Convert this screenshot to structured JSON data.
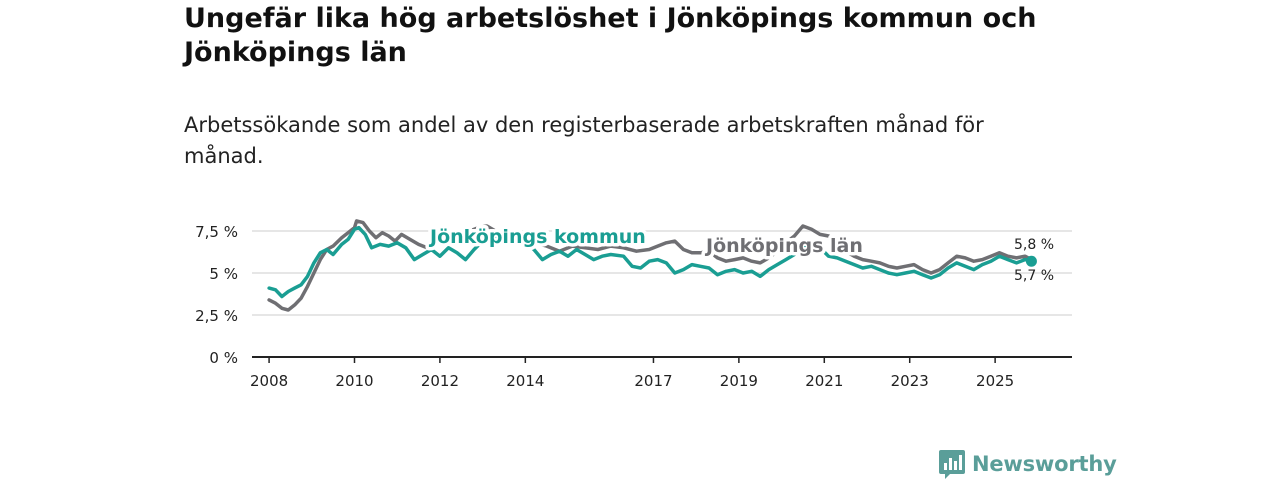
{
  "title": "Ungefär lika hög arbetslöshet i Jönköpings kommun och Jönköpings län",
  "subtitle": "Arbetssökande som andel av den registerbaserade arbetskraften månad för månad.",
  "brand": "Newsworthy",
  "colors": {
    "kommun": "#1a9e93",
    "lan": "#6f6f73",
    "grid": "#dddddd",
    "axis": "#222222",
    "brand": "#5a9e99"
  },
  "chart_data": {
    "type": "line",
    "title": "Ungefär lika hög arbetslöshet i Jönköpings kommun och Jönköpings län",
    "xlabel": "",
    "ylabel": "",
    "xlim": [
      2007.6,
      2026.8
    ],
    "ylim": [
      0,
      7.5
    ],
    "y_ticks": [
      0,
      2.5,
      5,
      7.5
    ],
    "y_tick_labels": [
      "0 %",
      "2,5 %",
      "5 %",
      "7,5 %"
    ],
    "x_ticks": [
      2008,
      2010,
      2012,
      2014,
      2017,
      2019,
      2021,
      2023,
      2025
    ],
    "x_tick_labels": [
      "2008",
      "2010",
      "2012",
      "2014",
      "2017",
      "2019",
      "2021",
      "2023",
      "2025"
    ],
    "grid": true,
    "series": [
      {
        "name": "Jönköpings län",
        "color": "#6f6f73",
        "end_label": "5,8 %",
        "points": [
          [
            2008.0,
            3.4
          ],
          [
            2008.15,
            3.2
          ],
          [
            2008.3,
            2.9
          ],
          [
            2008.45,
            2.8
          ],
          [
            2008.6,
            3.1
          ],
          [
            2008.75,
            3.5
          ],
          [
            2008.9,
            4.2
          ],
          [
            2009.05,
            5.0
          ],
          [
            2009.2,
            5.8
          ],
          [
            2009.35,
            6.4
          ],
          [
            2009.5,
            6.6
          ],
          [
            2009.7,
            7.1
          ],
          [
            2009.85,
            7.4
          ],
          [
            2010.0,
            7.7
          ],
          [
            2010.05,
            8.1
          ],
          [
            2010.2,
            8.0
          ],
          [
            2010.35,
            7.5
          ],
          [
            2010.5,
            7.1
          ],
          [
            2010.65,
            7.4
          ],
          [
            2010.8,
            7.2
          ],
          [
            2010.95,
            6.9
          ],
          [
            2011.1,
            7.3
          ],
          [
            2011.3,
            7.0
          ],
          [
            2011.5,
            6.7
          ],
          [
            2011.7,
            6.5
          ],
          [
            2011.9,
            6.9
          ],
          [
            2012.1,
            6.7
          ],
          [
            2012.3,
            7.1
          ],
          [
            2012.5,
            7.3
          ],
          [
            2012.7,
            7.5
          ],
          [
            2012.9,
            7.7
          ],
          [
            2013.1,
            7.8
          ],
          [
            2013.3,
            7.5
          ],
          [
            2013.6,
            7.3
          ],
          [
            2013.9,
            7.0
          ],
          [
            2014.2,
            6.8
          ],
          [
            2014.5,
            6.6
          ],
          [
            2014.8,
            6.3
          ],
          [
            2015.1,
            6.6
          ],
          [
            2015.4,
            6.5
          ],
          [
            2015.7,
            6.4
          ],
          [
            2016.0,
            6.6
          ],
          [
            2016.3,
            6.5
          ],
          [
            2016.6,
            6.3
          ],
          [
            2016.9,
            6.4
          ],
          [
            2017.1,
            6.6
          ],
          [
            2017.3,
            6.8
          ],
          [
            2017.5,
            6.9
          ],
          [
            2017.7,
            6.4
          ],
          [
            2017.9,
            6.2
          ],
          [
            2018.1,
            6.2
          ],
          [
            2018.3,
            6.3
          ],
          [
            2018.5,
            5.9
          ],
          [
            2018.7,
            5.7
          ],
          [
            2018.9,
            5.8
          ],
          [
            2019.1,
            5.9
          ],
          [
            2019.3,
            5.7
          ],
          [
            2019.5,
            5.6
          ],
          [
            2019.7,
            5.9
          ],
          [
            2019.9,
            6.3
          ],
          [
            2020.1,
            6.8
          ],
          [
            2020.3,
            7.2
          ],
          [
            2020.5,
            7.8
          ],
          [
            2020.7,
            7.6
          ],
          [
            2020.9,
            7.3
          ],
          [
            2021.1,
            7.2
          ],
          [
            2021.3,
            6.8
          ],
          [
            2021.5,
            6.3
          ],
          [
            2021.7,
            6.0
          ],
          [
            2021.9,
            5.8
          ],
          [
            2022.1,
            5.7
          ],
          [
            2022.3,
            5.6
          ],
          [
            2022.5,
            5.4
          ],
          [
            2022.7,
            5.3
          ],
          [
            2022.9,
            5.4
          ],
          [
            2023.1,
            5.5
          ],
          [
            2023.3,
            5.2
          ],
          [
            2023.5,
            5.0
          ],
          [
            2023.7,
            5.2
          ],
          [
            2023.9,
            5.6
          ],
          [
            2024.1,
            6.0
          ],
          [
            2024.3,
            5.9
          ],
          [
            2024.5,
            5.7
          ],
          [
            2024.7,
            5.8
          ],
          [
            2024.9,
            6.0
          ],
          [
            2025.1,
            6.2
          ],
          [
            2025.3,
            6.0
          ],
          [
            2025.5,
            5.9
          ],
          [
            2025.7,
            6.0
          ],
          [
            2025.85,
            5.8
          ]
        ]
      },
      {
        "name": "Jönköpings kommun",
        "color": "#1a9e93",
        "end_label": "5,7 %",
        "points": [
          [
            2008.0,
            4.1
          ],
          [
            2008.15,
            4.0
          ],
          [
            2008.3,
            3.6
          ],
          [
            2008.45,
            3.9
          ],
          [
            2008.6,
            4.1
          ],
          [
            2008.75,
            4.3
          ],
          [
            2008.9,
            4.8
          ],
          [
            2009.05,
            5.6
          ],
          [
            2009.2,
            6.2
          ],
          [
            2009.35,
            6.4
          ],
          [
            2009.5,
            6.1
          ],
          [
            2009.7,
            6.7
          ],
          [
            2009.85,
            7.0
          ],
          [
            2010.0,
            7.6
          ],
          [
            2010.1,
            7.7
          ],
          [
            2010.25,
            7.3
          ],
          [
            2010.4,
            6.5
          ],
          [
            2010.6,
            6.7
          ],
          [
            2010.8,
            6.6
          ],
          [
            2011.0,
            6.8
          ],
          [
            2011.2,
            6.5
          ],
          [
            2011.4,
            5.8
          ],
          [
            2011.6,
            6.1
          ],
          [
            2011.8,
            6.4
          ],
          [
            2012.0,
            6.0
          ],
          [
            2012.2,
            6.5
          ],
          [
            2012.4,
            6.2
          ],
          [
            2012.6,
            5.8
          ],
          [
            2012.8,
            6.4
          ],
          [
            2013.0,
            6.9
          ],
          [
            2013.3,
            7.2
          ],
          [
            2013.6,
            7.3
          ],
          [
            2013.9,
            7.0
          ],
          [
            2014.2,
            6.4
          ],
          [
            2014.4,
            5.8
          ],
          [
            2014.6,
            6.1
          ],
          [
            2014.8,
            6.3
          ],
          [
            2015.0,
            6.0
          ],
          [
            2015.2,
            6.4
          ],
          [
            2015.4,
            6.1
          ],
          [
            2015.6,
            5.8
          ],
          [
            2015.8,
            6.0
          ],
          [
            2016.0,
            6.1
          ],
          [
            2016.3,
            6.0
          ],
          [
            2016.5,
            5.4
          ],
          [
            2016.7,
            5.3
          ],
          [
            2016.9,
            5.7
          ],
          [
            2017.1,
            5.8
          ],
          [
            2017.3,
            5.6
          ],
          [
            2017.5,
            5.0
          ],
          [
            2017.7,
            5.2
          ],
          [
            2017.9,
            5.5
          ],
          [
            2018.1,
            5.4
          ],
          [
            2018.3,
            5.3
          ],
          [
            2018.5,
            4.9
          ],
          [
            2018.7,
            5.1
          ],
          [
            2018.9,
            5.2
          ],
          [
            2019.1,
            5.0
          ],
          [
            2019.3,
            5.1
          ],
          [
            2019.5,
            4.8
          ],
          [
            2019.7,
            5.2
          ],
          [
            2019.9,
            5.5
          ],
          [
            2020.1,
            5.8
          ],
          [
            2020.3,
            6.1
          ],
          [
            2020.5,
            6.6
          ],
          [
            2020.7,
            6.7
          ],
          [
            2020.9,
            6.5
          ],
          [
            2021.1,
            6.0
          ],
          [
            2021.3,
            5.9
          ],
          [
            2021.5,
            5.7
          ],
          [
            2021.7,
            5.5
          ],
          [
            2021.9,
            5.3
          ],
          [
            2022.1,
            5.4
          ],
          [
            2022.3,
            5.2
          ],
          [
            2022.5,
            5.0
          ],
          [
            2022.7,
            4.9
          ],
          [
            2022.9,
            5.0
          ],
          [
            2023.1,
            5.1
          ],
          [
            2023.3,
            4.9
          ],
          [
            2023.5,
            4.7
          ],
          [
            2023.7,
            4.9
          ],
          [
            2023.9,
            5.3
          ],
          [
            2024.1,
            5.6
          ],
          [
            2024.3,
            5.4
          ],
          [
            2024.5,
            5.2
          ],
          [
            2024.7,
            5.5
          ],
          [
            2024.9,
            5.7
          ],
          [
            2025.1,
            6.0
          ],
          [
            2025.3,
            5.8
          ],
          [
            2025.5,
            5.6
          ],
          [
            2025.7,
            5.8
          ],
          [
            2025.85,
            5.7
          ]
        ]
      }
    ]
  }
}
